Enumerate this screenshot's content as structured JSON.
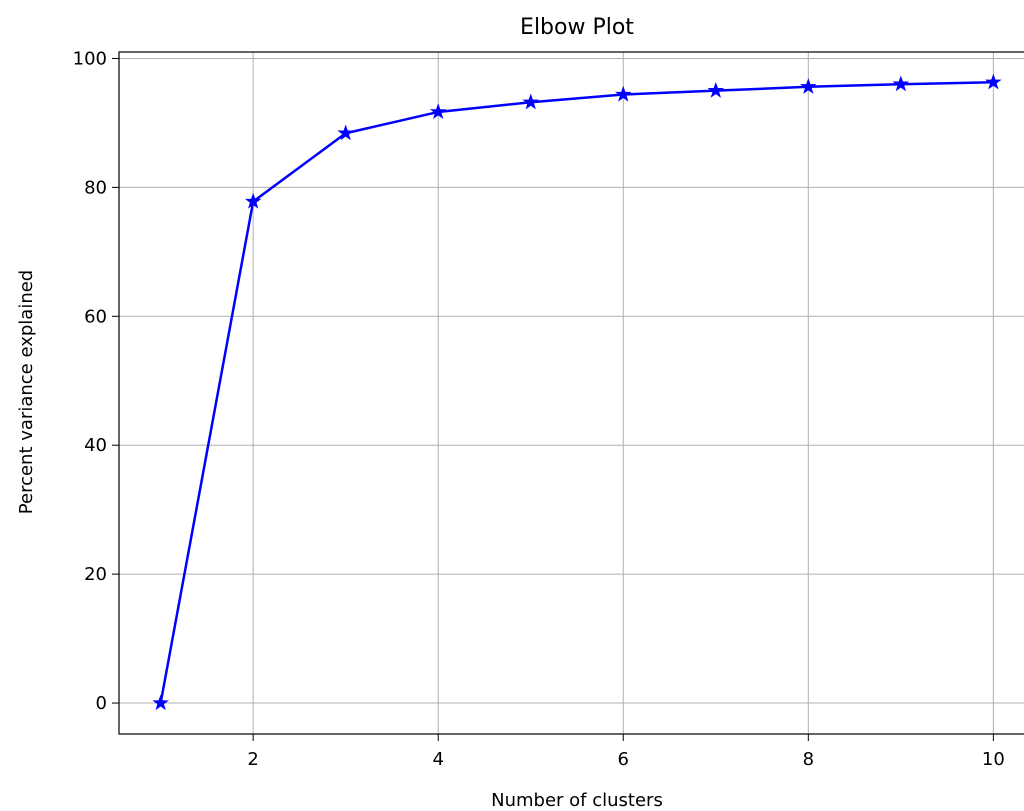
{
  "chart_data": {
    "type": "line",
    "title": "Elbow Plot",
    "xlabel": "Number of clusters",
    "ylabel": "Percent variance explained",
    "x": [
      1,
      2,
      3,
      4,
      5,
      6,
      7,
      8,
      9,
      10
    ],
    "series": [
      {
        "values": [
          0,
          77.8,
          88.4,
          91.7,
          93.2,
          94.4,
          95.0,
          95.6,
          96.0,
          96.3
        ],
        "color": "#0000ff",
        "marker": "star"
      }
    ],
    "xlim": [
      0.55,
      10.45
    ],
    "ylim": [
      -4.8,
      101.0
    ],
    "xticks": [
      2,
      4,
      6,
      8,
      10
    ],
    "yticks": [
      0,
      20,
      40,
      60,
      80,
      100
    ],
    "grid": true,
    "legend": "none"
  }
}
